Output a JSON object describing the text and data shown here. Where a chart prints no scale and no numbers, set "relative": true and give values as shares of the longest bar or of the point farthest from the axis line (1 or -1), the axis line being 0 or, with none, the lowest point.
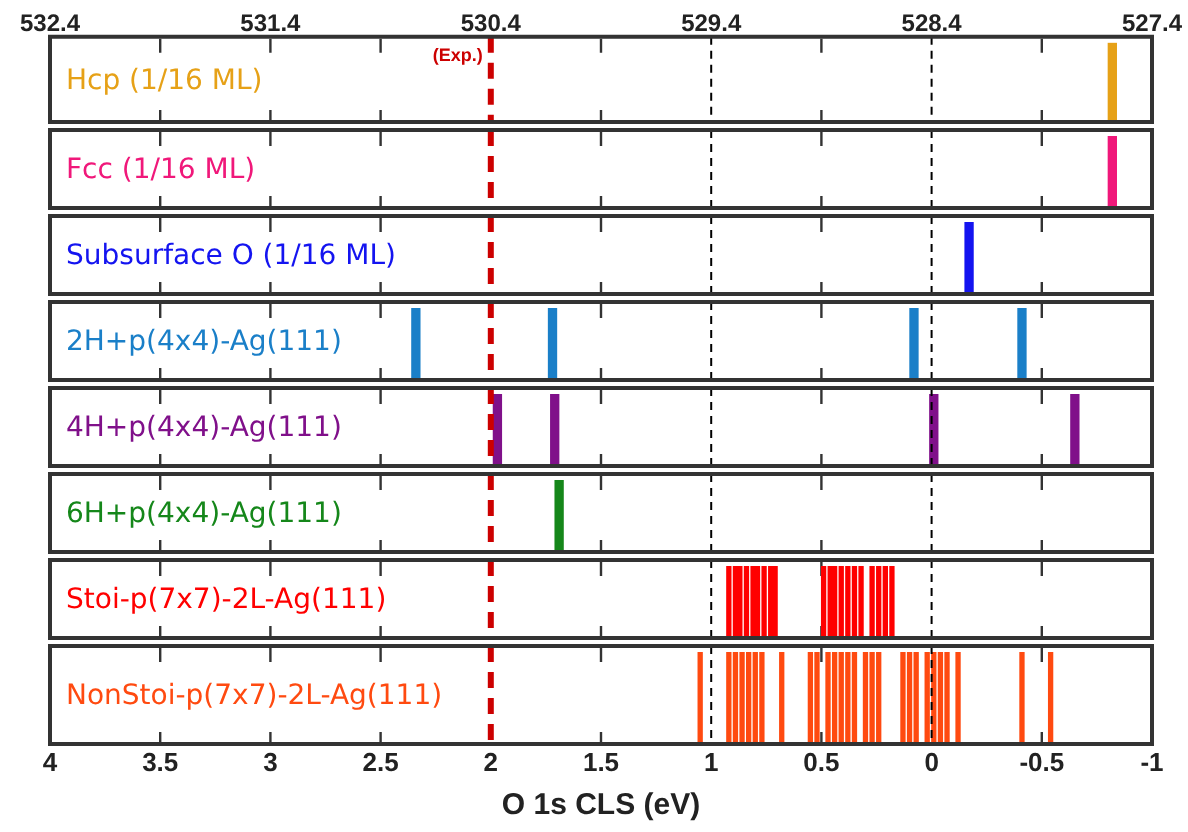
{
  "chart_data": [
    {
      "type": "bar",
      "relative": true,
      "xlim": [
        532.4,
        527.4
      ],
      "xticks": [
        532.4,
        {
          "value": 531.9,
          "label": null
        },
        531.4,
        {
          "value": 530.9,
          "label": null
        },
        530.4,
        {
          "value": 529.9,
          "label": null
        },
        529.4,
        {
          "value": 528.9,
          "label": null
        },
        528.4,
        {
          "value": 527.9,
          "label": null
        },
        527.4
      ],
      "series": [
        {
          "name": "Hcp (1/16 ML)",
          "color": "#e6a117",
          "x": [
            527.58
          ],
          "values": [
            1
          ]
        }
      ],
      "ref_lines": [
        {
          "axis": "x",
          "value": 530.4,
          "label": "(Exp.)",
          "color": "#cc0000",
          "line_style": "dashed"
        },
        {
          "axis": "x",
          "value": 529.4,
          "color": "#000000",
          "line_style": "dashed"
        },
        {
          "axis": "x",
          "value": 528.4,
          "color": "#000000",
          "line_style": "dashed"
        }
      ]
    },
    {
      "type": "bar",
      "relative": true,
      "xlim": [
        4,
        -1
      ],
      "xticks": [
        4,
        3.5,
        3,
        2.5,
        2,
        1.5,
        1,
        0.5,
        0,
        -0.5,
        -1
      ],
      "tick_labels": false,
      "series": [
        {
          "name": "Fcc (1/16 ML)",
          "color": "#f0187a",
          "x": [
            -0.82
          ],
          "values": [
            1
          ]
        }
      ],
      "ref_lines": [
        {
          "axis": "x",
          "value": 2,
          "color": "#cc0000",
          "line_style": "dashed"
        },
        {
          "axis": "x",
          "value": 1,
          "color": "#000000",
          "line_style": "dashed"
        },
        {
          "axis": "x",
          "value": 0,
          "color": "#000000",
          "line_style": "dashed"
        }
      ]
    },
    {
      "type": "bar",
      "relative": true,
      "xlim": [
        4,
        -1
      ],
      "xticks": [
        4,
        3.5,
        3,
        2.5,
        2,
        1.5,
        1,
        0.5,
        0,
        -0.5,
        -1
      ],
      "tick_labels": false,
      "series": [
        {
          "name": "Subsurface O (1/16 ML)",
          "color": "#1414f0",
          "x": [
            -0.17
          ],
          "values": [
            1
          ]
        }
      ],
      "ref_lines": [
        {
          "axis": "x",
          "value": 2,
          "color": "#cc0000",
          "line_style": "dashed"
        },
        {
          "axis": "x",
          "value": 1,
          "color": "#000000",
          "line_style": "dashed"
        },
        {
          "axis": "x",
          "value": 0,
          "color": "#000000",
          "line_style": "dashed"
        }
      ]
    },
    {
      "type": "bar",
      "relative": true,
      "xlim": [
        4,
        -1
      ],
      "xticks": [
        4,
        3.5,
        3,
        2.5,
        2,
        1.5,
        1,
        0.5,
        0,
        -0.5,
        -1
      ],
      "tick_labels": false,
      "series": [
        {
          "name": "2H+p(4x4)-Ag(111)",
          "color": "#1a7fc8",
          "x": [
            2.34,
            1.72,
            0.08,
            -0.41
          ],
          "values": [
            1,
            1,
            1,
            1
          ]
        }
      ],
      "ref_lines": [
        {
          "axis": "x",
          "value": 2,
          "color": "#cc0000",
          "line_style": "dashed"
        },
        {
          "axis": "x",
          "value": 1,
          "color": "#000000",
          "line_style": "dashed"
        },
        {
          "axis": "x",
          "value": 0,
          "color": "#000000",
          "line_style": "dashed"
        }
      ]
    },
    {
      "type": "bar",
      "relative": true,
      "xlim": [
        4,
        -1
      ],
      "xticks": [
        4,
        3.5,
        3,
        2.5,
        2,
        1.5,
        1,
        0.5,
        0,
        -0.5,
        -1
      ],
      "tick_labels": false,
      "series": [
        {
          "name": "4H+p(4x4)-Ag(111)",
          "color": "#80108a",
          "x": [
            1.97,
            1.71,
            -0.01,
            -0.65
          ],
          "values": [
            1,
            1,
            1,
            1
          ]
        }
      ],
      "ref_lines": [
        {
          "axis": "x",
          "value": 2,
          "color": "#cc0000",
          "line_style": "dashed"
        },
        {
          "axis": "x",
          "value": 1,
          "color": "#000000",
          "line_style": "dashed"
        },
        {
          "axis": "x",
          "value": 0,
          "color": "#000000",
          "line_style": "dashed"
        }
      ]
    },
    {
      "type": "bar",
      "relative": true,
      "xlim": [
        4,
        -1
      ],
      "xticks": [
        4,
        3.5,
        3,
        2.5,
        2,
        1.5,
        1,
        0.5,
        0,
        -0.5,
        -1
      ],
      "tick_labels": false,
      "series": [
        {
          "name": "6H+p(4x4)-Ag(111)",
          "color": "#15871a",
          "x": [
            1.69
          ],
          "values": [
            1
          ]
        }
      ],
      "ref_lines": [
        {
          "axis": "x",
          "value": 2,
          "color": "#cc0000",
          "line_style": "dashed"
        },
        {
          "axis": "x",
          "value": 1,
          "color": "#000000",
          "line_style": "dashed"
        },
        {
          "axis": "x",
          "value": 0,
          "color": "#000000",
          "line_style": "dashed"
        }
      ]
    },
    {
      "type": "bar",
      "relative": true,
      "xlim": [
        4,
        -1
      ],
      "xticks": [
        4,
        3.5,
        3,
        2.5,
        2,
        1.5,
        1,
        0.5,
        0,
        -0.5,
        -1
      ],
      "tick_labels": false,
      "series": [
        {
          "name": "Stoi-p(7x7)-2L-Ag(111)",
          "color": "#ff0000",
          "x": [
            0.92,
            0.89,
            0.87,
            0.84,
            0.81,
            0.79,
            0.76,
            0.73,
            0.71,
            0.49,
            0.46,
            0.44,
            0.41,
            0.38,
            0.35,
            0.32,
            0.27,
            0.24,
            0.21,
            0.18
          ],
          "values": [
            1,
            1,
            1,
            1,
            1,
            1,
            1,
            1,
            1,
            1,
            1,
            1,
            1,
            1,
            1,
            1,
            1,
            1,
            1,
            1
          ]
        }
      ],
      "ref_lines": [
        {
          "axis": "x",
          "value": 2,
          "color": "#cc0000",
          "line_style": "dashed"
        },
        {
          "axis": "x",
          "value": 1,
          "color": "#000000",
          "line_style": "dashed"
        },
        {
          "axis": "x",
          "value": 0,
          "color": "#000000",
          "line_style": "dashed"
        }
      ]
    },
    {
      "type": "bar",
      "relative": true,
      "xlim": [
        4,
        -1
      ],
      "xticks": [
        4,
        3.5,
        3,
        2.5,
        2,
        1.5,
        1,
        0.5,
        0,
        -0.5,
        -1
      ],
      "tick_labels": "x",
      "xlabel": "O 1s CLS (eV)",
      "series": [
        {
          "name": "NonStoi-p(7x7)-2L-Ag(111)",
          "color": "#ff4a10",
          "x": [
            1.05,
            0.92,
            0.89,
            0.86,
            0.83,
            0.8,
            0.77,
            0.68,
            0.55,
            0.52,
            0.47,
            0.44,
            0.41,
            0.38,
            0.35,
            0.3,
            0.27,
            0.24,
            0.13,
            0.1,
            0.07,
            0.02,
            -0.01,
            -0.04,
            -0.07,
            -0.12,
            -0.41,
            -0.54
          ],
          "values": [
            1,
            1,
            1,
            1,
            1,
            1,
            1,
            1,
            1,
            1,
            1,
            1,
            1,
            1,
            1,
            1,
            1,
            1,
            1,
            1,
            1,
            1,
            1,
            1,
            1,
            1,
            1,
            1
          ]
        }
      ],
      "ref_lines": [
        {
          "axis": "x",
          "value": 2,
          "color": "#cc0000",
          "line_style": "dashed"
        },
        {
          "axis": "x",
          "value": 1,
          "color": "#000000",
          "line_style": "dashed"
        },
        {
          "axis": "x",
          "value": 0,
          "color": "#000000",
          "line_style": "dashed"
        }
      ]
    }
  ]
}
